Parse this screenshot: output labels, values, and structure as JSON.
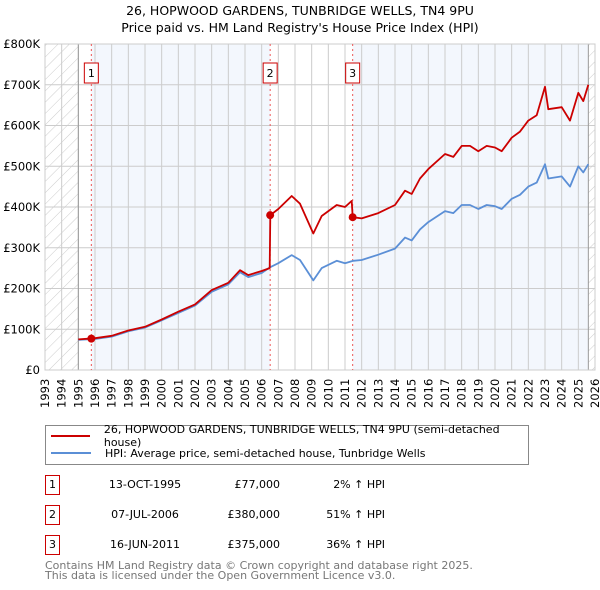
{
  "title_line1": "26, HOPWOOD GARDENS, TUNBRIDGE WELLS, TN4 9PU",
  "title_line2": "Price paid vs. HM Land Registry's House Price Index (HPI)",
  "chart_data": {
    "type": "line",
    "title": "26, HOPWOOD GARDENS, TUNBRIDGE WELLS, TN4 9PU — Price paid vs. HM Land Registry's House Price Index (HPI)",
    "xlim": [
      1993,
      2026
    ],
    "ylim": [
      0,
      800000
    ],
    "x_ticks": [
      "1993",
      "1994",
      "1995",
      "1996",
      "1997",
      "1998",
      "1999",
      "2000",
      "2001",
      "2002",
      "2003",
      "2004",
      "2005",
      "2006",
      "2007",
      "2008",
      "2009",
      "2010",
      "2011",
      "2012",
      "2013",
      "2014",
      "2015",
      "2016",
      "2017",
      "2018",
      "2019",
      "2020",
      "2021",
      "2022",
      "2023",
      "2024",
      "2025",
      "2026"
    ],
    "y_ticks": [
      {
        "v": 0,
        "label": "£0"
      },
      {
        "v": 100000,
        "label": "£100K"
      },
      {
        "v": 200000,
        "label": "£200K"
      },
      {
        "v": 300000,
        "label": "£300K"
      },
      {
        "v": 400000,
        "label": "£400K"
      },
      {
        "v": 500000,
        "label": "£500K"
      },
      {
        "v": 600000,
        "label": "£600K"
      },
      {
        "v": 700000,
        "label": "£700K"
      },
      {
        "v": 800000,
        "label": "£800K"
      }
    ],
    "grid": true,
    "data_range": [
      1995,
      2025.6
    ],
    "series": [
      {
        "name": "26, HOPWOOD GARDENS, TUNBRIDGE WELLS, TN4 9PU (semi-detached house)",
        "color": "#cc0000",
        "x": [
          1995,
          1996,
          1997,
          1998,
          1999,
          2000,
          2001,
          2002,
          2003,
          2004,
          2004.7,
          2005.2,
          2006,
          2006.48,
          2006.52,
          2007,
          2007.8,
          2008.3,
          2009.1,
          2009.6,
          2010.5,
          2011,
          2011.4,
          2011.46,
          2012,
          2013,
          2014,
          2014.6,
          2015,
          2015.5,
          2016,
          2017,
          2017.5,
          2018,
          2018.5,
          2019,
          2019.5,
          2020,
          2020.4,
          2021,
          2021.5,
          2022,
          2022.5,
          2023,
          2023.2,
          2024,
          2024.5,
          2025,
          2025.3,
          2025.6
        ],
        "y": [
          75000,
          78000,
          84000,
          97000,
          106000,
          124000,
          143000,
          161000,
          196000,
          214000,
          245000,
          233000,
          243000,
          250000,
          380000,
          395000,
          427000,
          408000,
          335000,
          378000,
          405000,
          400000,
          415000,
          375000,
          372000,
          385000,
          405000,
          440000,
          432000,
          470000,
          493000,
          530000,
          523000,
          550000,
          550000,
          537000,
          550000,
          546000,
          537000,
          570000,
          585000,
          612000,
          625000,
          695000,
          640000,
          645000,
          612000,
          680000,
          660000,
          700000
        ]
      },
      {
        "name": "HPI: Average price, semi-detached house, Tunbridge Wells",
        "color": "#5b8fd6",
        "x": [
          1995,
          1996,
          1997,
          1998,
          1999,
          2000,
          2001,
          2002,
          2003,
          2004,
          2004.7,
          2005.2,
          2006,
          2006.5,
          2007,
          2007.8,
          2008.3,
          2009.1,
          2009.6,
          2010.5,
          2011,
          2011.5,
          2012,
          2013,
          2014,
          2014.6,
          2015,
          2015.5,
          2016,
          2017,
          2017.5,
          2018,
          2018.5,
          2019,
          2019.5,
          2020,
          2020.4,
          2021,
          2021.5,
          2022,
          2022.5,
          2023,
          2023.2,
          2024,
          2024.5,
          2025,
          2025.3,
          2025.6
        ],
        "y": [
          74000,
          76000,
          82000,
          95000,
          104000,
          122000,
          140000,
          158000,
          192000,
          210000,
          240000,
          228000,
          238000,
          252000,
          262000,
          282000,
          270000,
          220000,
          250000,
          268000,
          262000,
          268000,
          270000,
          283000,
          298000,
          325000,
          318000,
          345000,
          363000,
          390000,
          385000,
          405000,
          405000,
          395000,
          405000,
          402000,
          395000,
          420000,
          430000,
          450000,
          460000,
          505000,
          470000,
          475000,
          450000,
          500000,
          485000,
          505000
        ]
      }
    ],
    "sales": [
      {
        "label": "1",
        "x": 1995.78,
        "y": 77000
      },
      {
        "label": "2",
        "x": 2006.51,
        "y": 380000
      },
      {
        "label": "3",
        "x": 2011.46,
        "y": 375000
      }
    ]
  },
  "legend": [
    {
      "label": "26, HOPWOOD GARDENS, TUNBRIDGE WELLS, TN4 9PU (semi-detached house)",
      "color": "#cc0000"
    },
    {
      "label": "HPI: Average price, semi-detached house, Tunbridge Wells",
      "color": "#5b8fd6"
    }
  ],
  "sales_table": [
    {
      "num": "1",
      "date": "13-OCT-1995",
      "price": "£77,000",
      "hpi": "2% ↑ HPI"
    },
    {
      "num": "2",
      "date": "07-JUL-2006",
      "price": "£380,000",
      "hpi": "51% ↑ HPI"
    },
    {
      "num": "3",
      "date": "16-JUN-2011",
      "price": "£375,000",
      "hpi": "36% ↑ HPI"
    }
  ],
  "footer_line1": "Contains HM Land Registry data © Crown copyright and database right 2025.",
  "footer_line2": "This data is licensed under the Open Government Licence v3.0."
}
